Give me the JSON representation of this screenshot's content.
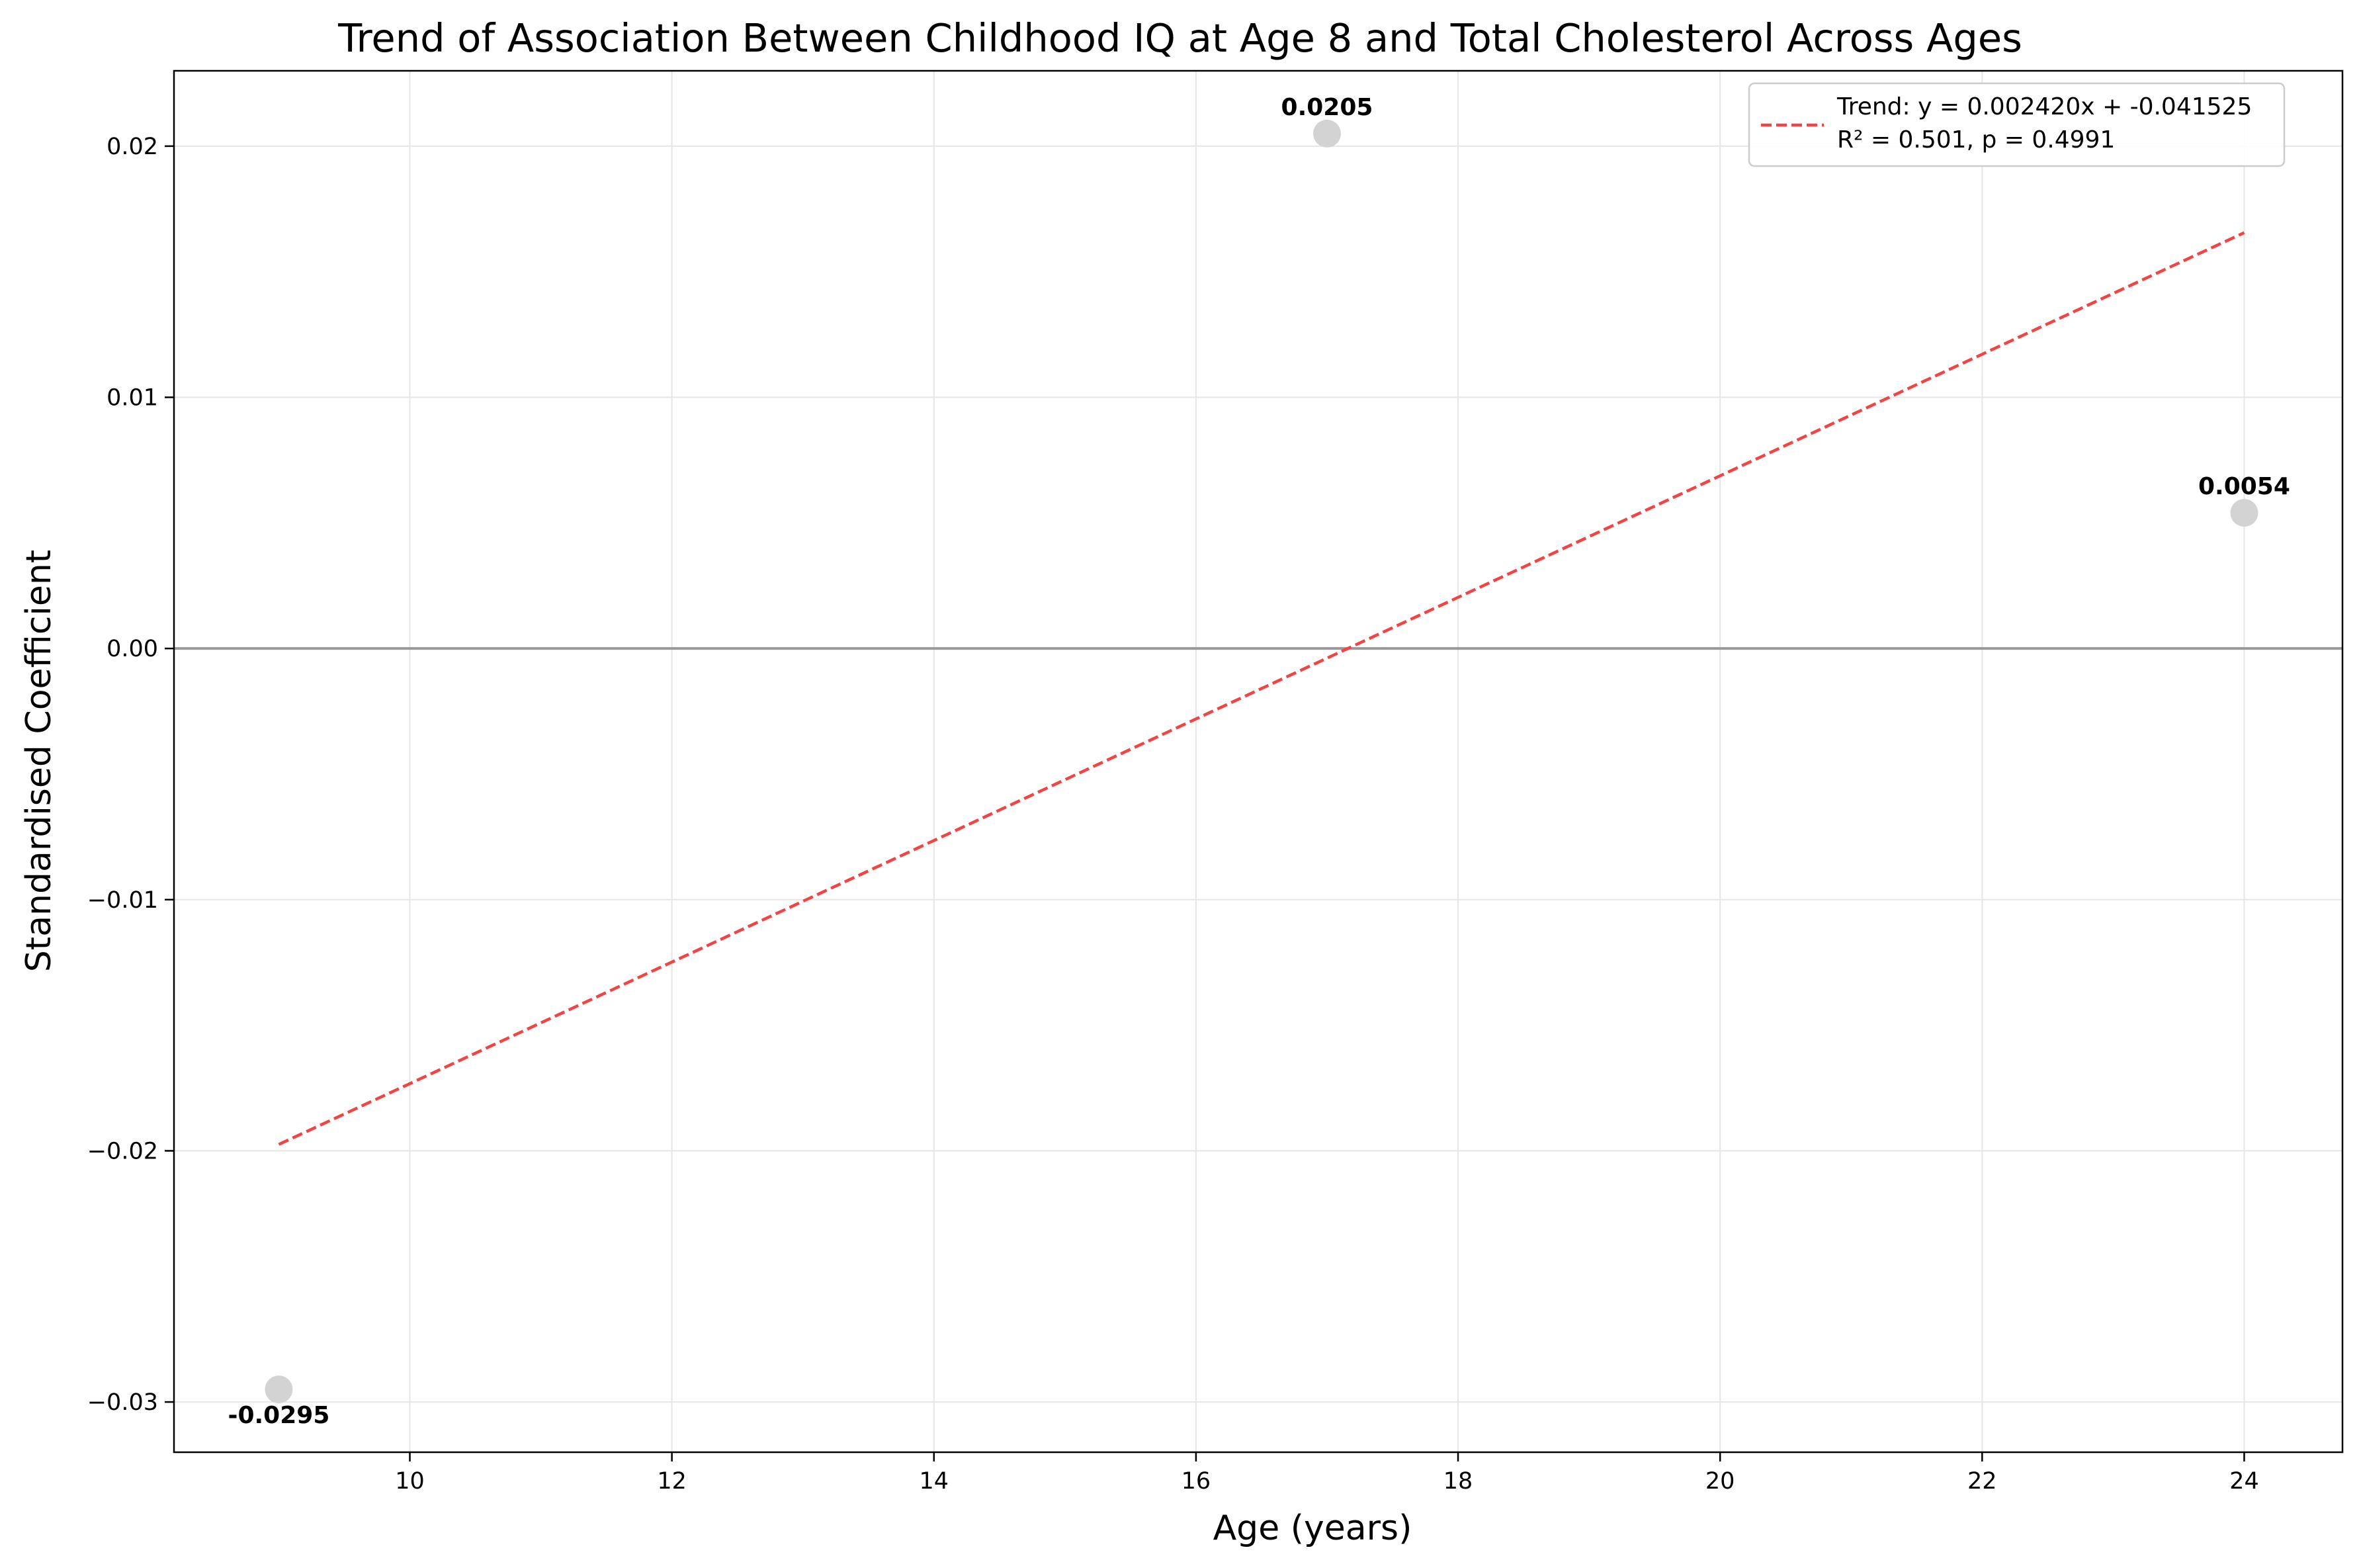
{
  "chart_data": {
    "type": "scatter",
    "title": "Trend of Association Between Childhood IQ at Age 8 and Total Cholesterol Across Ages",
    "xlabel": "Age (years)",
    "ylabel": "Standardised Coefficient",
    "xlim": [
      8.2,
      24.75
    ],
    "ylim": [
      -0.032,
      0.023
    ],
    "x_ticks": [
      10,
      12,
      14,
      16,
      18,
      20,
      22,
      24
    ],
    "x_tick_labels": [
      "10",
      "12",
      "14",
      "16",
      "18",
      "20",
      "22",
      "24"
    ],
    "y_ticks": [
      -0.03,
      -0.02,
      -0.01,
      0.0,
      0.01,
      0.02
    ],
    "y_tick_labels": [
      "−0.03",
      "−0.02",
      "−0.01",
      "0.00",
      "0.01",
      "0.02"
    ],
    "grid": true,
    "zero_line": true,
    "points": [
      {
        "x": 9,
        "y": -0.0295,
        "label": "-0.0295"
      },
      {
        "x": 17,
        "y": 0.0205,
        "label": "0.0205"
      },
      {
        "x": 24,
        "y": 0.0054,
        "label": "0.0054"
      }
    ],
    "trend": {
      "slope": 0.00242,
      "intercept": -0.041525,
      "x_range": [
        9,
        24
      ],
      "legend_line1": "Trend: y = 0.002420x + -0.041525",
      "legend_line2": "R² = 0.501, p = 0.4991"
    },
    "legend_position": "top-right",
    "colors": {
      "points": "#d3d3d3",
      "trend": "#f24444",
      "zero_line": "#999999",
      "grid": "#e6e6e6",
      "axis": "#000000"
    }
  }
}
